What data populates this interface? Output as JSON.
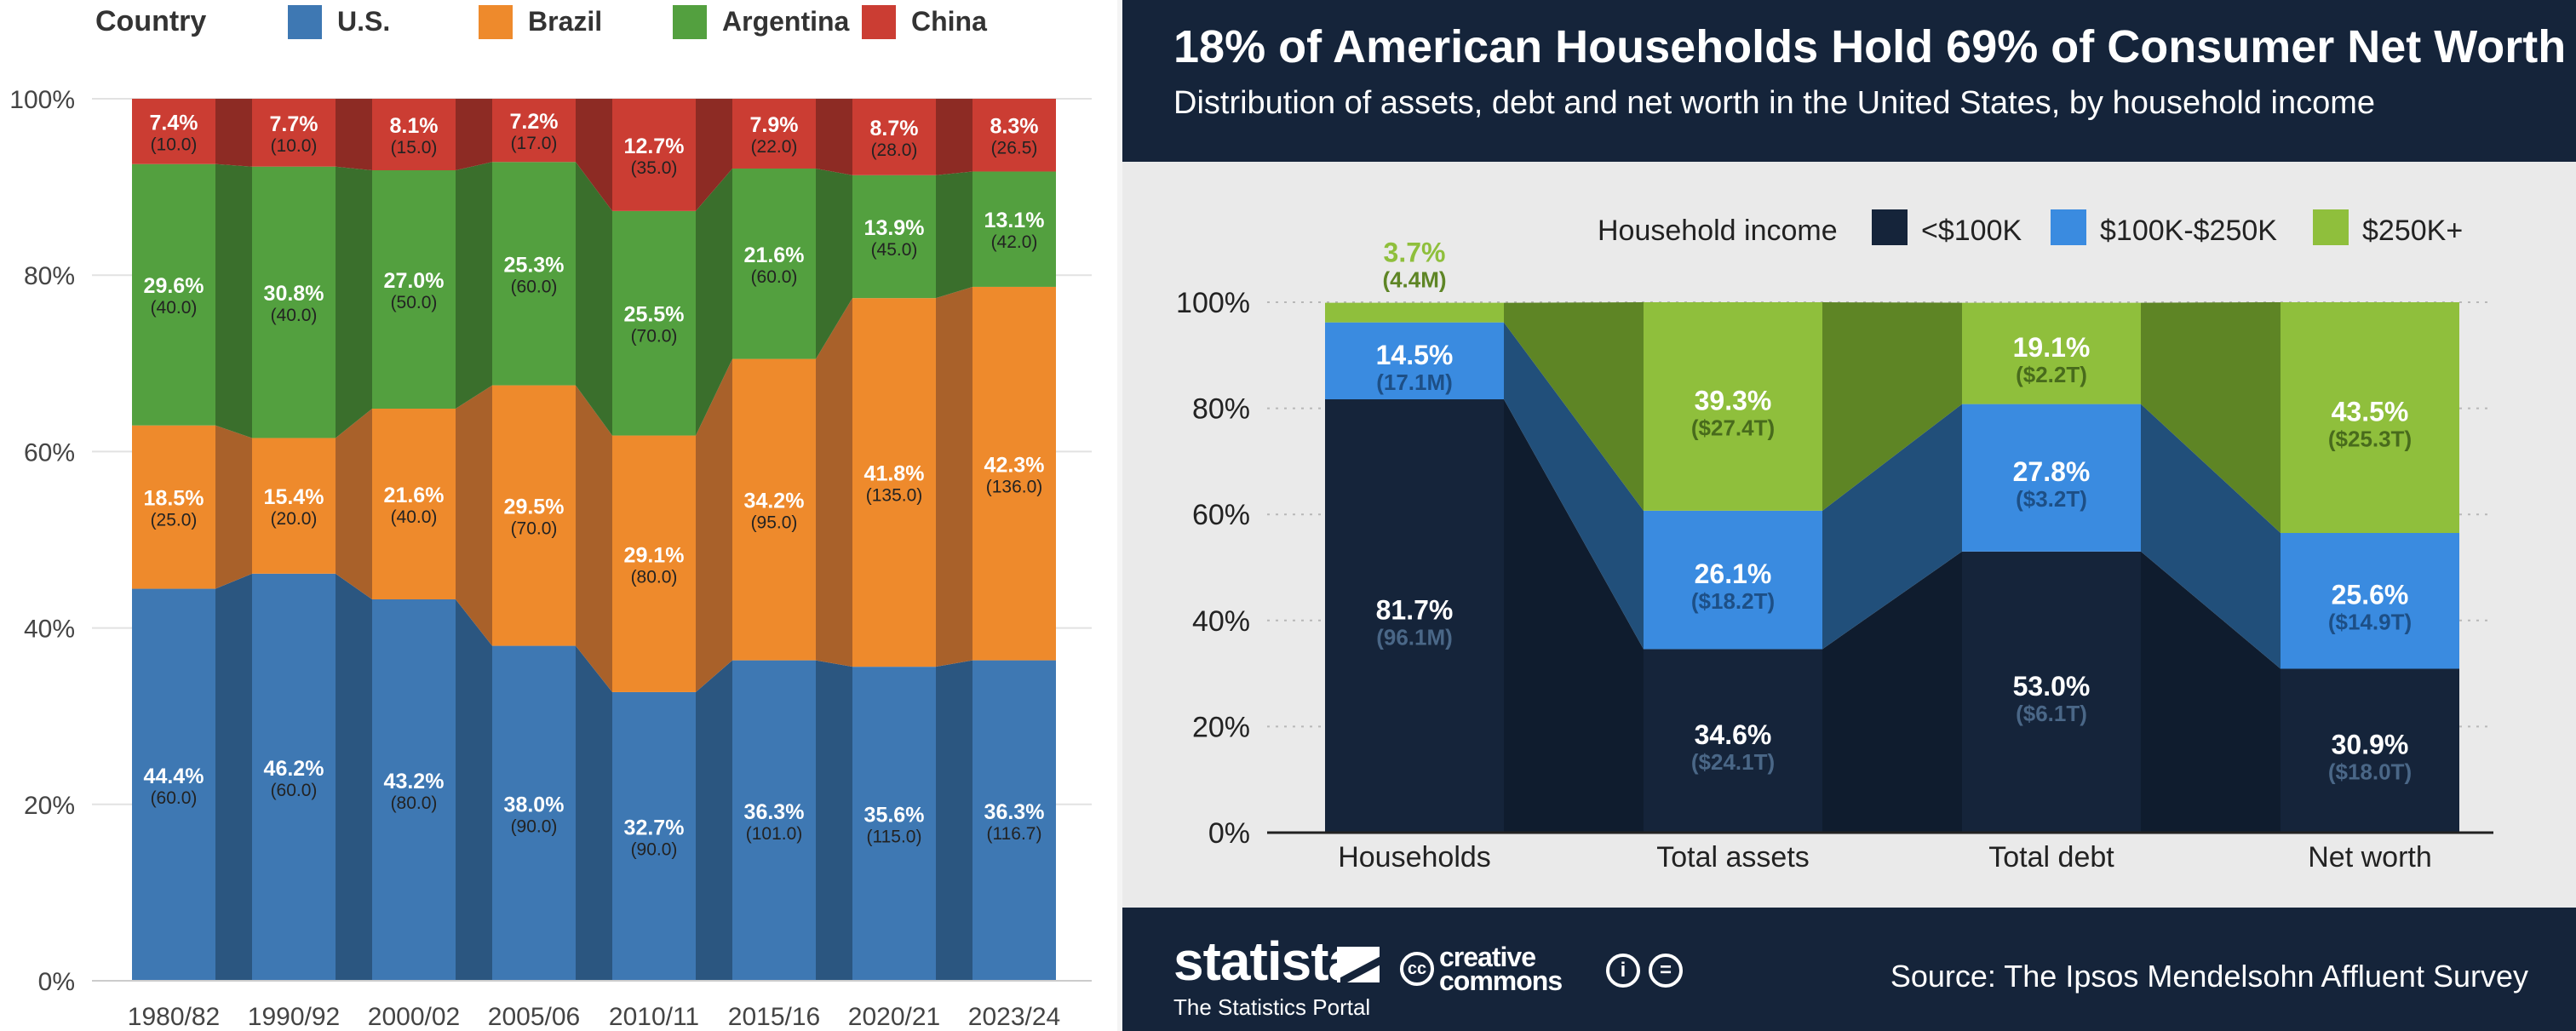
{
  "chart_data": [
    {
      "type": "bar",
      "stacked": true,
      "normalized": true,
      "legend_title": "Country",
      "legend_position": "top",
      "categories": [
        "1980/82",
        "1990/92",
        "2000/02",
        "2005/06",
        "2010/11",
        "2015/16",
        "2020/21",
        "2023/24"
      ],
      "series": [
        {
          "name": "U.S.",
          "color": "#3e78b3",
          "values": [
            60.0,
            60.0,
            80.0,
            90.0,
            90.0,
            101.0,
            115.0,
            116.7
          ],
          "labels": [
            "44.4%",
            "46.2%",
            "43.2%",
            "38.0%",
            "32.7%",
            "36.3%",
            "35.6%",
            "36.3%"
          ]
        },
        {
          "name": "Brazil",
          "color": "#ee8a2c",
          "values": [
            25.0,
            20.0,
            40.0,
            70.0,
            80.0,
            95.0,
            135.0,
            136.0
          ],
          "labels": [
            "18.5%",
            "15.4%",
            "21.6%",
            "29.5%",
            "29.1%",
            "34.2%",
            "41.8%",
            "42.3%"
          ]
        },
        {
          "name": "Argentina",
          "color": "#53a03f",
          "values": [
            40.0,
            40.0,
            50.0,
            60.0,
            70.0,
            60.0,
            45.0,
            42.0
          ],
          "labels": [
            "29.6%",
            "30.8%",
            "27.0%",
            "25.3%",
            "25.5%",
            "21.6%",
            "13.9%",
            "13.1%"
          ]
        },
        {
          "name": "China",
          "color": "#cb3d33",
          "values": [
            10.0,
            10.0,
            15.0,
            17.0,
            35.0,
            22.0,
            28.0,
            26.5
          ],
          "labels": [
            "7.4%",
            "7.7%",
            "8.1%",
            "7.2%",
            "12.7%",
            "7.9%",
            "8.7%",
            "8.3%"
          ]
        }
      ],
      "y_ticks": [
        "0%",
        "20%",
        "40%",
        "60%",
        "80%",
        "100%"
      ],
      "ylim": [
        0,
        100
      ],
      "grid": true
    },
    {
      "type": "bar",
      "stacked": true,
      "normalized": true,
      "title": "18% of American Households Hold 69% of Consumer Net Worth",
      "subtitle": "Distribution of assets, debt and net worth in the United States, by household income",
      "legend_title": "Household income",
      "legend_position": "top-right",
      "categories": [
        "Households",
        "Total assets",
        "Total debt",
        "Net worth"
      ],
      "series": [
        {
          "name": "<$100K",
          "color": "#15243a",
          "values": [
            81.7,
            34.6,
            53.0,
            30.9
          ],
          "sublabels": [
            "(96.1M)",
            "($24.1T)",
            "($6.1T)",
            "($18.0T)"
          ]
        },
        {
          "name": "$100K-$250K",
          "color": "#3a8be0",
          "values": [
            14.5,
            26.1,
            27.8,
            25.6
          ],
          "sublabels": [
            "(17.1M)",
            "($18.2T)",
            "($3.2T)",
            "($14.9T)"
          ]
        },
        {
          "name": "$250K+",
          "color": "#8fbf3c",
          "values": [
            3.7,
            39.3,
            19.1,
            43.5
          ],
          "sublabels": [
            "(4.4M)",
            "($27.4T)",
            "($2.2T)",
            "($25.3T)"
          ]
        }
      ],
      "y_ticks": [
        "0%",
        "20%",
        "40%",
        "60%",
        "80%",
        "100%"
      ],
      "ylim": [
        0,
        100
      ],
      "grid": true,
      "source": "Source: The Ipsos Mendelsohn Affluent Survey",
      "brand": "statista",
      "brand_tagline": "The Statistics Portal",
      "license_logo": "creative commons"
    }
  ]
}
